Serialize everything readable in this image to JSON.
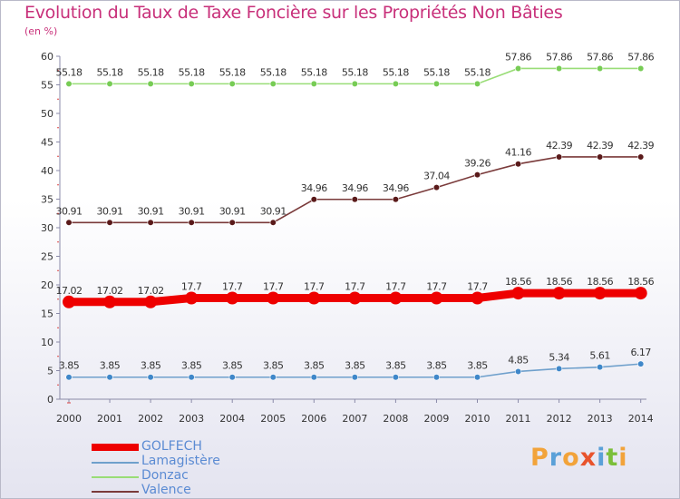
{
  "header": {
    "title": "Evolution du Taux de Taxe Foncière sur les Propriétés Non Bâties",
    "subtitle": "(en %)"
  },
  "brand": {
    "letters": [
      "P",
      "r",
      "o",
      "x",
      "i",
      "t",
      "i"
    ],
    "colors": [
      "#f2a33a",
      "#5aa0d8",
      "#f2a33a",
      "#e8532c",
      "#5aa0d8",
      "#7bbf3a",
      "#f2a33a"
    ]
  },
  "chart_data": {
    "type": "line",
    "title": "Evolution du Taux de Taxe Foncière sur les Propriétés Non Bâties",
    "ylabel": "(en %)",
    "xlabel": "",
    "ylim": [
      0,
      60
    ],
    "yticks": [
      0,
      5,
      10,
      15,
      20,
      25,
      30,
      35,
      40,
      45,
      50,
      55,
      60
    ],
    "categories": [
      "2000",
      "2001",
      "2002",
      "2003",
      "2004",
      "2005",
      "2006",
      "2007",
      "2008",
      "2009",
      "2010",
      "2011",
      "2012",
      "2013",
      "2014"
    ],
    "series": [
      {
        "name": "GOLFECH",
        "color": "#ee0000",
        "emphasis": true,
        "values": [
          17.02,
          17.02,
          17.02,
          17.7,
          17.7,
          17.7,
          17.7,
          17.7,
          17.7,
          17.7,
          17.7,
          18.56,
          18.56,
          18.56,
          18.56
        ],
        "labels": [
          "17.02",
          "17.02",
          "17.02",
          "17.7",
          "17.7",
          "17.7",
          "17.7",
          "17.7",
          "17.7",
          "17.7",
          "17.7",
          "18.56",
          "18.56",
          "18.56",
          "18.56"
        ]
      },
      {
        "name": "Lamagistère",
        "color": "#6fa0cc",
        "marker": "#3f87c9",
        "values": [
          3.85,
          3.85,
          3.85,
          3.85,
          3.85,
          3.85,
          3.85,
          3.85,
          3.85,
          3.85,
          3.85,
          4.85,
          5.34,
          5.61,
          6.17
        ],
        "labels": [
          "3.85",
          "3.85",
          "3.85",
          "3.85",
          "3.85",
          "3.85",
          "3.85",
          "3.85",
          "3.85",
          "3.85",
          "3.85",
          "4.85",
          "5.34",
          "5.61",
          "6.17"
        ]
      },
      {
        "name": "Donzac",
        "color": "#99dd77",
        "marker": "#77cc55",
        "values": [
          55.18,
          55.18,
          55.18,
          55.18,
          55.18,
          55.18,
          55.18,
          55.18,
          55.18,
          55.18,
          55.18,
          57.86,
          57.86,
          57.86,
          57.86
        ],
        "labels": [
          "55.18",
          "55.18",
          "55.18",
          "55.18",
          "55.18",
          "55.18",
          "55.18",
          "55.18",
          "55.18",
          "55.18",
          "55.18",
          "57.86",
          "57.86",
          "57.86",
          "57.86"
        ]
      },
      {
        "name": "Valence",
        "color": "#7a3a3a",
        "marker": "#5a1a1a",
        "values": [
          30.91,
          30.91,
          30.91,
          30.91,
          30.91,
          30.91,
          34.96,
          34.96,
          34.96,
          37.04,
          39.26,
          41.16,
          42.39,
          42.39,
          42.39
        ],
        "labels": [
          "30.91",
          "30.91",
          "30.91",
          "30.91",
          "30.91",
          "30.91",
          "34.96",
          "34.96",
          "34.96",
          "37.04",
          "39.26",
          "41.16",
          "42.39",
          "42.39",
          "42.39"
        ]
      }
    ],
    "legend_position": "bottom-left",
    "grid": false
  }
}
